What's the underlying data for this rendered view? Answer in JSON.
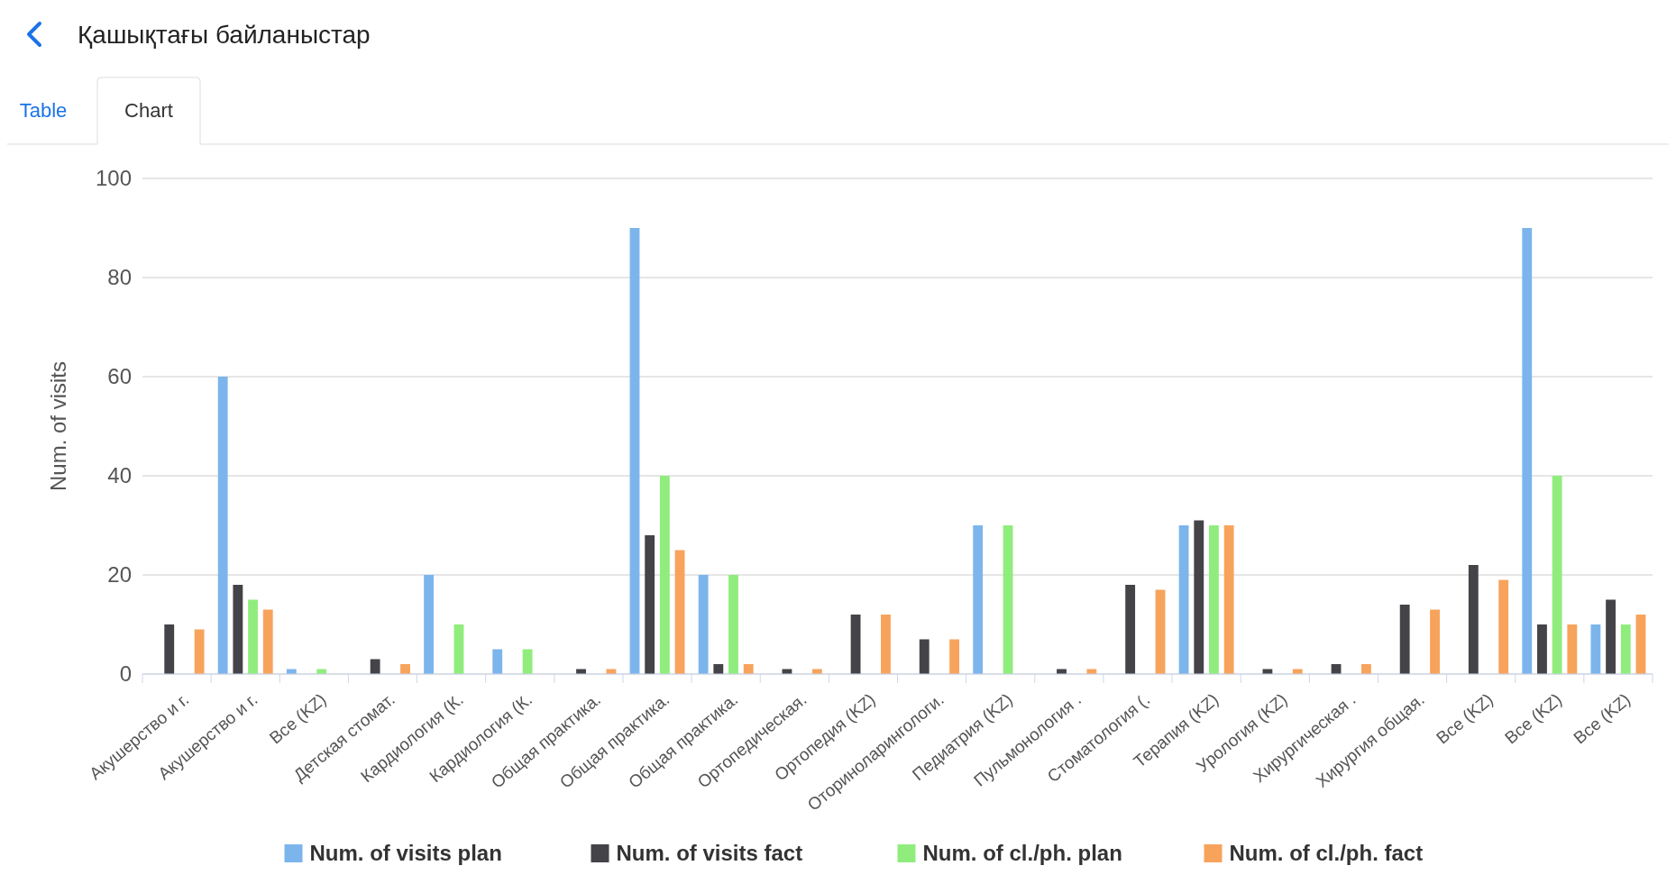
{
  "chart_data": {
    "type": "bar",
    "title": "Қашықтағы байланыстар",
    "annotations": [
      "Table",
      "Chart"
    ],
    "ylabel": "Num. of visits",
    "categories": [
      "Акушерство и г.",
      "Акушерство и г.",
      "Все (KZ)",
      "Детская стомат.",
      "Кардиология (К.",
      "Кардиология (К.",
      "Общая практика.",
      "Общая практика.",
      "Общая практика.",
      "Ортопедическая.",
      "Ортопедия (KZ)",
      "Оториноларингологи.",
      "Педиатрия (KZ)",
      "Пульмонология .",
      "Стоматология (.",
      "Терапия (KZ)",
      "Урология (KZ)",
      "Хирургическая .",
      "Хирургия общая.",
      "Все (KZ)",
      "Все (KZ)",
      "Все (KZ)"
    ],
    "series": [
      {
        "name": "Num. of visits plan",
        "color": "#7cb5ec",
        "values": [
          0,
          60,
          1,
          0,
          20,
          5,
          0,
          90,
          20,
          0,
          0,
          0,
          30,
          0,
          0,
          30,
          0,
          0,
          0,
          0,
          90,
          10
        ]
      },
      {
        "name": "Num. of visits fact",
        "color": "#434348",
        "values": [
          10,
          18,
          0,
          3,
          0,
          0,
          1,
          28,
          2,
          1,
          12,
          7,
          0,
          1,
          18,
          31,
          1,
          2,
          14,
          22,
          10,
          15
        ]
      },
      {
        "name": "Num. of cl./ph. plan",
        "color": "#90ed7d",
        "values": [
          0,
          15,
          1,
          0,
          10,
          5,
          0,
          40,
          20,
          0,
          0,
          0,
          30,
          0,
          0,
          30,
          0,
          0,
          0,
          0,
          40,
          10
        ]
      },
      {
        "name": "Num. of cl./ph. fact",
        "color": "#f7a35c",
        "values": [
          9,
          13,
          0,
          2,
          0,
          0,
          1,
          25,
          2,
          1,
          12,
          7,
          0,
          1,
          17,
          30,
          1,
          2,
          13,
          19,
          10,
          12
        ]
      }
    ],
    "ylim": [
      0,
      100
    ],
    "yticks": [
      0,
      20,
      40,
      60,
      80,
      100
    ],
    "grid": "y",
    "legend": "bottom"
  }
}
